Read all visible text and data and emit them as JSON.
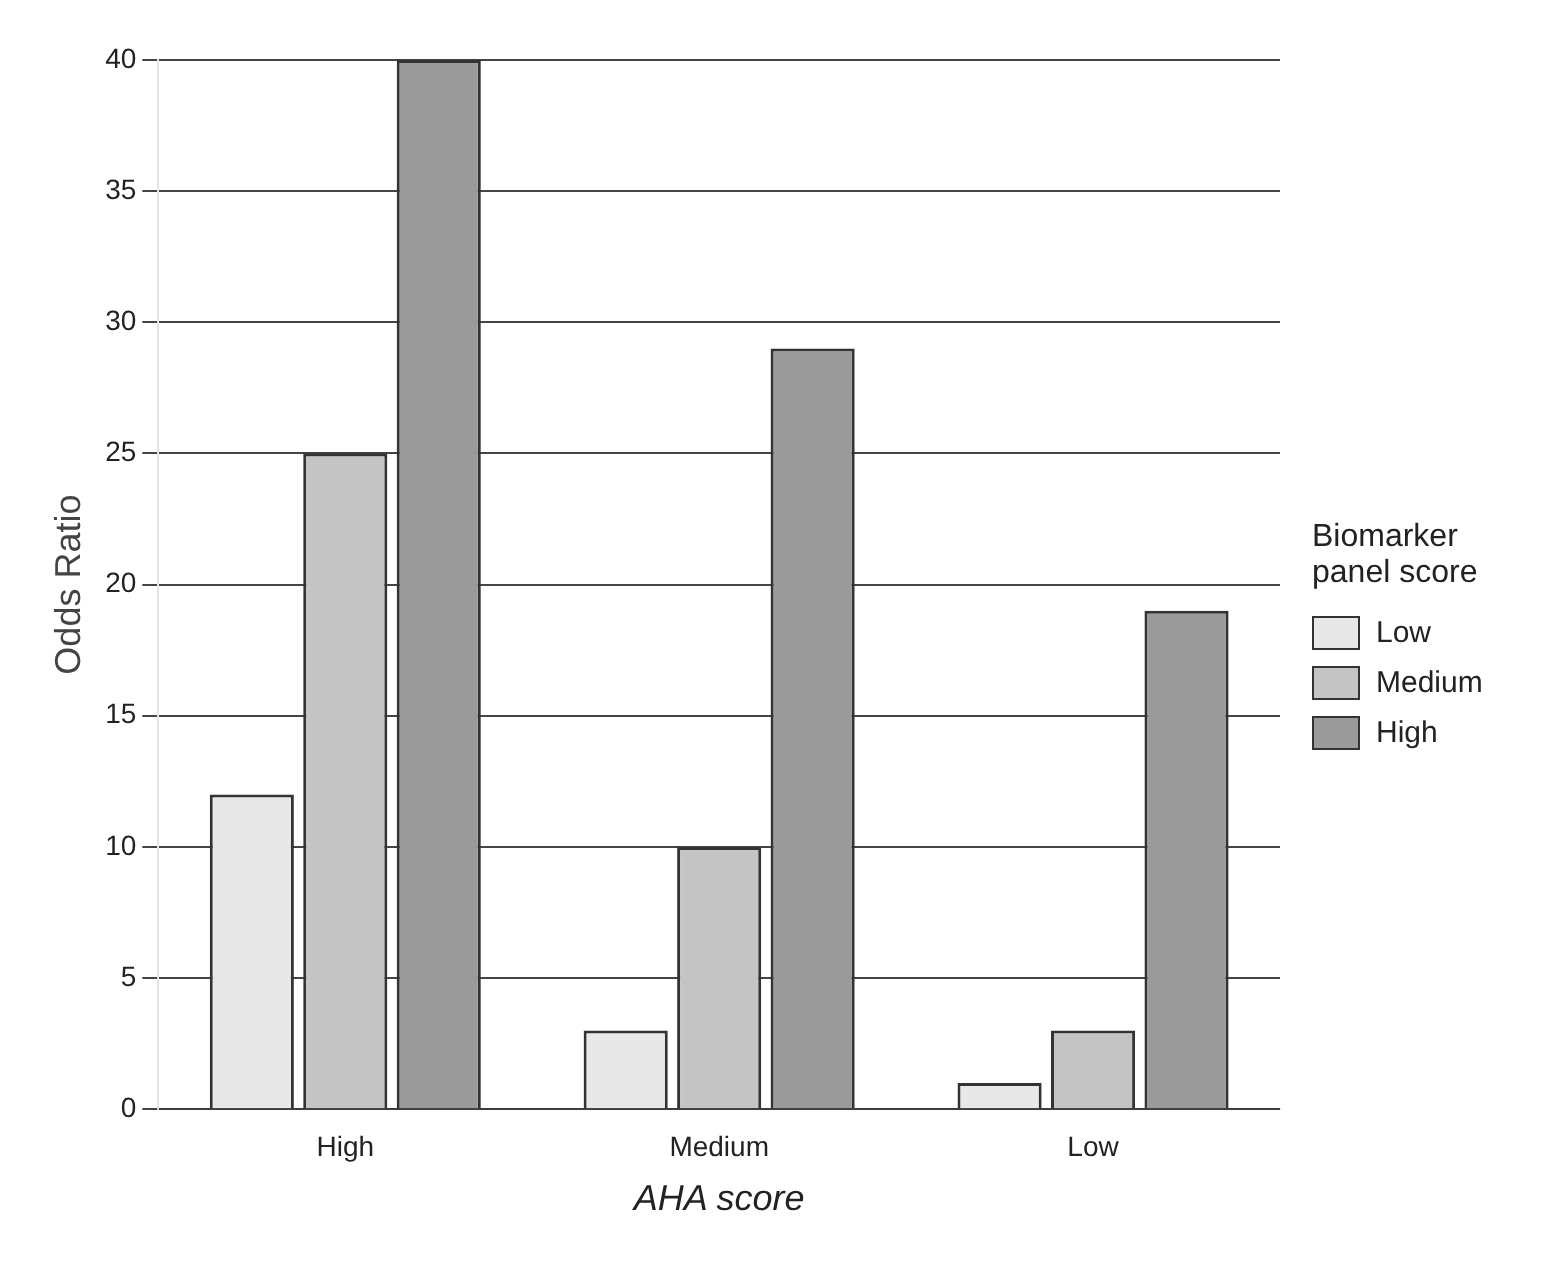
{
  "chart_data": {
    "type": "bar",
    "xlabel": "AHA score",
    "ylabel": "Odds Ratio",
    "legend_title": "Biomarker panel score",
    "categories": [
      "High",
      "Medium",
      "Low"
    ],
    "series": [
      {
        "name": "Low",
        "color": "#e8e8e8",
        "values": [
          12,
          3,
          1
        ]
      },
      {
        "name": "Medium",
        "color": "#c4c4c4",
        "values": [
          25,
          10,
          3
        ]
      },
      {
        "name": "High",
        "color": "#9a9a9a",
        "values": [
          40,
          29,
          19
        ]
      }
    ],
    "ylim": [
      0,
      40
    ],
    "yticks": [
      0,
      5,
      10,
      15,
      20,
      25,
      30,
      35,
      40
    ],
    "grid": "y",
    "legend": "right"
  }
}
